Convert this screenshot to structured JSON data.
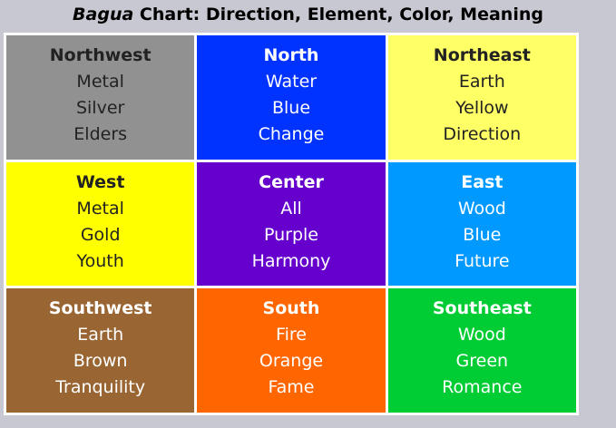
{
  "title": {
    "italic": "Bagua",
    "rest": " Chart: Direction, Element, Color, Meaning"
  },
  "cells": [
    {
      "direction": "Northwest",
      "element": "Metal",
      "color": "Silver",
      "meaning": "Elders",
      "bg": "#919191",
      "fg": "#222222"
    },
    {
      "direction": "North",
      "element": "Water",
      "color": "Blue",
      "meaning": "Change",
      "bg": "#0033ff",
      "fg": "#ffffff"
    },
    {
      "direction": "Northeast",
      "element": "Earth",
      "color": "Yellow",
      "meaning": "Direction",
      "bg": "#ffff66",
      "fg": "#222222"
    },
    {
      "direction": "West",
      "element": "Metal",
      "color": "Gold",
      "meaning": "Youth",
      "bg": "#ffff00",
      "fg": "#222222"
    },
    {
      "direction": "Center",
      "element": "All",
      "color": "Purple",
      "meaning": "Harmony",
      "bg": "#6600cc",
      "fg": "#ffffff"
    },
    {
      "direction": "East",
      "element": "Wood",
      "color": "Blue",
      "meaning": "Future",
      "bg": "#0099ff",
      "fg": "#ffffff"
    },
    {
      "direction": "Southwest",
      "element": "Earth",
      "color": "Brown",
      "meaning": "Tranquility",
      "bg": "#996633",
      "fg": "#ffffff"
    },
    {
      "direction": "South",
      "element": "Fire",
      "color": "Orange",
      "meaning": "Fame",
      "bg": "#ff6600",
      "fg": "#ffffff"
    },
    {
      "direction": "Southeast",
      "element": "Wood",
      "color": "Green",
      "meaning": "Romance",
      "bg": "#00cc33",
      "fg": "#ffffff"
    }
  ]
}
